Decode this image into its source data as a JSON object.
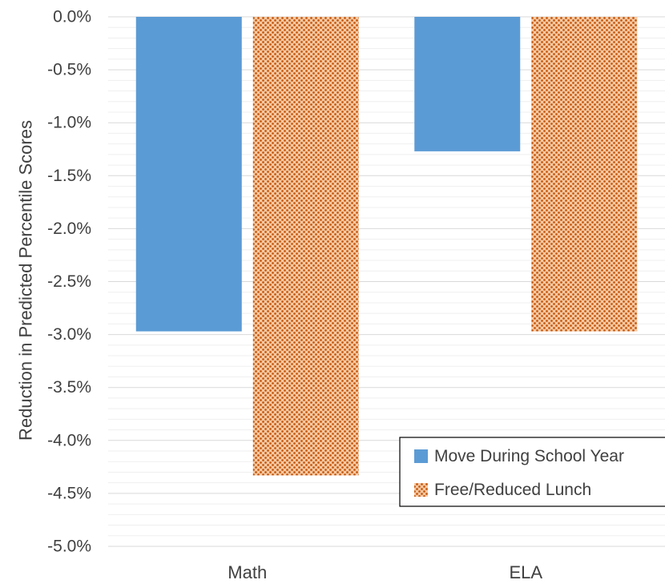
{
  "chart_data": {
    "type": "bar",
    "categories": [
      "Math",
      "ELA"
    ],
    "series": [
      {
        "name": "Move During School Year",
        "values": [
          -2.97,
          -1.27
        ],
        "color": "#5b9bd5",
        "pattern": "solid"
      },
      {
        "name": "Free/Reduced Lunch",
        "values": [
          -4.33,
          -2.97
        ],
        "color": "#ed7d31",
        "pattern": "dotted"
      }
    ],
    "ylabel": "Reduction in Predicted Percentile Scores",
    "xlabel": "",
    "ylim": [
      -5.0,
      0.0
    ],
    "yticks": [
      "0.0%",
      "-0.5%",
      "-1.0%",
      "-1.5%",
      "-2.0%",
      "-2.5%",
      "-3.0%",
      "-3.5%",
      "-4.0%",
      "-4.5%",
      "-5.0%"
    ],
    "grid": true,
    "legend_position": "bottom-right"
  }
}
